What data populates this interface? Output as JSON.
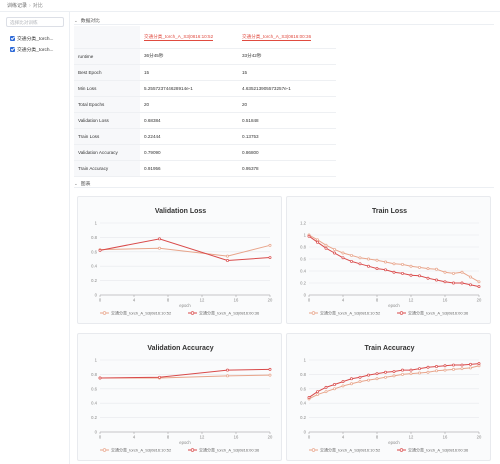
{
  "breadcrumb": {
    "root": "训练记录",
    "sep": "›",
    "current": "对比"
  },
  "sidebar": {
    "search_placeholder": "选择比对训练",
    "items": [
      {
        "label": "交通分类_torch..."
      },
      {
        "label": "交通分类_torch..."
      }
    ]
  },
  "sections": {
    "data_compare": "数据对比",
    "charts": "图表"
  },
  "compare_table": {
    "runs": [
      "交通分类_torch_A_S3|0816:10:52",
      "交通分类_torch_A_S3|0816:00:36"
    ],
    "rows": [
      {
        "key": "runtime",
        "values": [
          "36分45秒",
          "33分42秒"
        ]
      },
      {
        "key": "Best Epoch",
        "values": [
          "15",
          "15"
        ]
      },
      {
        "key": "Min Loss",
        "values": [
          "5.255723744628914e-1",
          "4.635213905573257e-1"
        ]
      },
      {
        "key": "Total Epochs",
        "values": [
          "20",
          "20"
        ]
      },
      {
        "key": "Validation Loss",
        "values": [
          "0.68384",
          "0.51848"
        ]
      },
      {
        "key": "Train Loss",
        "values": [
          "0.22444",
          "0.13753"
        ]
      },
      {
        "key": "Validation Accuracy",
        "values": [
          "0.79090",
          "0.86800"
        ]
      },
      {
        "key": "Train Accuracy",
        "values": [
          "0.91956",
          "0.95378"
        ]
      }
    ]
  },
  "chart_data": [
    {
      "type": "line",
      "title": "Validation Loss",
      "xlabel": "epoch",
      "xlim": [
        0,
        20
      ],
      "ylim": [
        0,
        1
      ],
      "xticks": [
        0,
        4,
        8,
        12,
        16,
        20
      ],
      "yticks": [
        0,
        0.2,
        0.4,
        0.6,
        0.8,
        1
      ],
      "ytick_labels": [
        "0",
        "0.2",
        "0.4",
        "0.6",
        "0.8",
        "1"
      ],
      "series": [
        {
          "name": "交通分类_torch_A_S3|0816:10:52",
          "color": "#e8a48a",
          "x": [
            0,
            7,
            15,
            20
          ],
          "y": [
            0.63,
            0.65,
            0.54,
            0.69
          ]
        },
        {
          "name": "交通分类_torch_A_S3|0816:00:36",
          "color": "#d94a4a",
          "x": [
            0,
            7,
            15,
            20
          ],
          "y": [
            0.62,
            0.78,
            0.48,
            0.52
          ]
        }
      ]
    },
    {
      "type": "line",
      "title": "Train Loss",
      "xlabel": "epoch",
      "xlim": [
        0,
        20
      ],
      "ylim": [
        0,
        1.2
      ],
      "xticks": [
        0,
        4,
        8,
        12,
        16,
        20
      ],
      "yticks": [
        0,
        0.2,
        0.4,
        0.6,
        0.8,
        1,
        1.2
      ],
      "ytick_labels": [
        "0",
        "0.2",
        "0.4",
        "0.6",
        "0.8",
        "1",
        "1.2"
      ],
      "series": [
        {
          "name": "交通分类_torch_A_S3|0816:10:52",
          "color": "#e8a48a",
          "x": [
            0,
            1,
            2,
            3,
            4,
            5,
            6,
            7,
            8,
            9,
            10,
            11,
            12,
            13,
            14,
            15,
            16,
            17,
            18,
            19,
            20
          ],
          "y": [
            1.0,
            0.92,
            0.83,
            0.76,
            0.7,
            0.66,
            0.62,
            0.6,
            0.58,
            0.55,
            0.52,
            0.51,
            0.48,
            0.46,
            0.44,
            0.43,
            0.38,
            0.36,
            0.38,
            0.3,
            0.22
          ]
        },
        {
          "name": "交通分类_torch_A_S3|0816:00:36",
          "color": "#d94a4a",
          "x": [
            0,
            1,
            2,
            3,
            4,
            5,
            6,
            7,
            8,
            9,
            10,
            11,
            12,
            13,
            14,
            15,
            16,
            17,
            18,
            19,
            20
          ],
          "y": [
            0.98,
            0.88,
            0.78,
            0.7,
            0.62,
            0.56,
            0.52,
            0.48,
            0.44,
            0.42,
            0.38,
            0.36,
            0.33,
            0.32,
            0.28,
            0.25,
            0.22,
            0.2,
            0.2,
            0.17,
            0.14
          ]
        }
      ]
    },
    {
      "type": "line",
      "title": "Validation Accuracy",
      "xlabel": "epoch",
      "xlim": [
        0,
        20
      ],
      "ylim": [
        0,
        1
      ],
      "xticks": [
        0,
        4,
        8,
        12,
        16,
        20
      ],
      "yticks": [
        0,
        0.2,
        0.4,
        0.6,
        0.8,
        1
      ],
      "ytick_labels": [
        "0",
        "0.2",
        "0.4",
        "0.6",
        "0.8",
        "1"
      ],
      "series": [
        {
          "name": "交通分类_torch_A_S3|0816:10:52",
          "color": "#e8a48a",
          "x": [
            0,
            7,
            15,
            20
          ],
          "y": [
            0.75,
            0.75,
            0.78,
            0.79
          ]
        },
        {
          "name": "交通分类_torch_A_S3|0816:00:36",
          "color": "#d94a4a",
          "x": [
            0,
            7,
            15,
            20
          ],
          "y": [
            0.75,
            0.76,
            0.86,
            0.87
          ]
        }
      ]
    },
    {
      "type": "line",
      "title": "Train Accuracy",
      "xlabel": "epoch",
      "xlim": [
        0,
        20
      ],
      "ylim": [
        0,
        1
      ],
      "xticks": [
        0,
        4,
        8,
        12,
        16,
        20
      ],
      "yticks": [
        0,
        0.2,
        0.4,
        0.6,
        0.8,
        1
      ],
      "ytick_labels": [
        "0",
        "0.2",
        "0.4",
        "0.6",
        "0.8",
        "1"
      ],
      "series": [
        {
          "name": "交通分类_torch_A_S3|0816:10:52",
          "color": "#e8a48a",
          "x": [
            0,
            1,
            2,
            3,
            4,
            5,
            6,
            7,
            8,
            9,
            10,
            11,
            12,
            13,
            14,
            15,
            16,
            17,
            18,
            19,
            20
          ],
          "y": [
            0.46,
            0.52,
            0.56,
            0.6,
            0.64,
            0.67,
            0.7,
            0.72,
            0.74,
            0.76,
            0.78,
            0.8,
            0.81,
            0.82,
            0.83,
            0.85,
            0.86,
            0.87,
            0.88,
            0.89,
            0.92
          ]
        },
        {
          "name": "交通分类_torch_A_S3|0816:00:36",
          "color": "#d94a4a",
          "x": [
            0,
            1,
            2,
            3,
            4,
            5,
            6,
            7,
            8,
            9,
            10,
            11,
            12,
            13,
            14,
            15,
            16,
            17,
            18,
            19,
            20
          ],
          "y": [
            0.48,
            0.56,
            0.62,
            0.66,
            0.7,
            0.74,
            0.76,
            0.79,
            0.81,
            0.83,
            0.84,
            0.86,
            0.86,
            0.88,
            0.9,
            0.91,
            0.92,
            0.93,
            0.93,
            0.94,
            0.95
          ]
        }
      ]
    }
  ]
}
